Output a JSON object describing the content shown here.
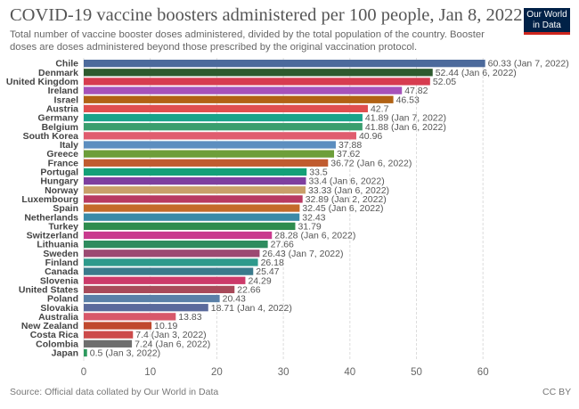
{
  "header": {
    "title": "COVID-19 vaccine boosters administered per 100 people, Jan 8, 2022",
    "subtitle": "Total number of vaccine booster doses administered, divided by the total population of the country. Booster doses are doses administered beyond those prescribed by the original vaccination protocol.",
    "logo_line1": "Our World",
    "logo_line2": "in Data"
  },
  "footer": {
    "source": "Source: Official data collated by Our World in Data",
    "license": "CC BY"
  },
  "chart_data": {
    "type": "bar",
    "orientation": "horizontal",
    "title": "COVID-19 vaccine boosters administered per 100 people, Jan 8, 2022",
    "xlabel": "",
    "ylabel": "",
    "xlim": [
      0,
      63
    ],
    "xticks": [
      0,
      10,
      20,
      30,
      40,
      50,
      60
    ],
    "grid": true,
    "categories": [
      "Chile",
      "Denmark",
      "United Kingdom",
      "Ireland",
      "Israel",
      "Austria",
      "Germany",
      "Belgium",
      "South Korea",
      "Italy",
      "Greece",
      "France",
      "Portugal",
      "Hungary",
      "Norway",
      "Luxembourg",
      "Spain",
      "Netherlands",
      "Turkey",
      "Switzerland",
      "Lithuania",
      "Sweden",
      "Finland",
      "Canada",
      "Slovenia",
      "United States",
      "Poland",
      "Slovakia",
      "Australia",
      "New Zealand",
      "Costa Rica",
      "Colombia",
      "Japan"
    ],
    "values": [
      60.33,
      52.44,
      52.05,
      47.82,
      46.53,
      42.7,
      41.89,
      41.88,
      40.96,
      37.88,
      37.62,
      36.72,
      33.5,
      33.4,
      33.33,
      32.89,
      32.45,
      32.43,
      31.79,
      28.28,
      27.66,
      26.43,
      26.18,
      25.47,
      24.29,
      22.66,
      20.43,
      18.71,
      13.83,
      10.19,
      7.4,
      7.24,
      0.5
    ],
    "value_labels": [
      "60.33 (Jan 7, 2022)",
      "52.44 (Jan 6, 2022)",
      "52.05",
      "47.82",
      "46.53",
      "42.7",
      "41.89 (Jan 7, 2022)",
      "41.88 (Jan 6, 2022)",
      "40.96",
      "37.88",
      "37.62",
      "36.72 (Jan 6, 2022)",
      "33.5",
      "33.4 (Jan 6, 2022)",
      "33.33 (Jan 6, 2022)",
      "32.89 (Jan 2, 2022)",
      "32.45 (Jan 6, 2022)",
      "32.43",
      "31.79",
      "28.28 (Jan 6, 2022)",
      "27.66",
      "26.43 (Jan 7, 2022)",
      "26.18",
      "25.47",
      "24.29",
      "22.66",
      "20.43",
      "18.71 (Jan 4, 2022)",
      "13.83",
      "10.19",
      "7.4 (Jan 3, 2022)",
      "7.24 (Jan 6, 2022)",
      "0.5 (Jan 3, 2022)"
    ],
    "colors": [
      "#4c6a9c",
      "#2e5a2e",
      "#d73c50",
      "#a652ba",
      "#b16214",
      "#e04e4e",
      "#18a38a",
      "#3a9e6e",
      "#e05d6f",
      "#5c8ebf",
      "#6d9e3a",
      "#c05b2f",
      "#14a078",
      "#7e3fa0",
      "#c9a06a",
      "#b83a62",
      "#c46a2a",
      "#3a8aa8",
      "#2e8c4e",
      "#c93a8e",
      "#2e8c5e",
      "#9c4a72",
      "#2e9a8c",
      "#3a7a8c",
      "#cc3a6a",
      "#a84a5a",
      "#5a80a8",
      "#5a6a9c",
      "#d8586a",
      "#c0492e",
      "#cc4a4a",
      "#6e6e6e",
      "#2e9a5e"
    ]
  }
}
